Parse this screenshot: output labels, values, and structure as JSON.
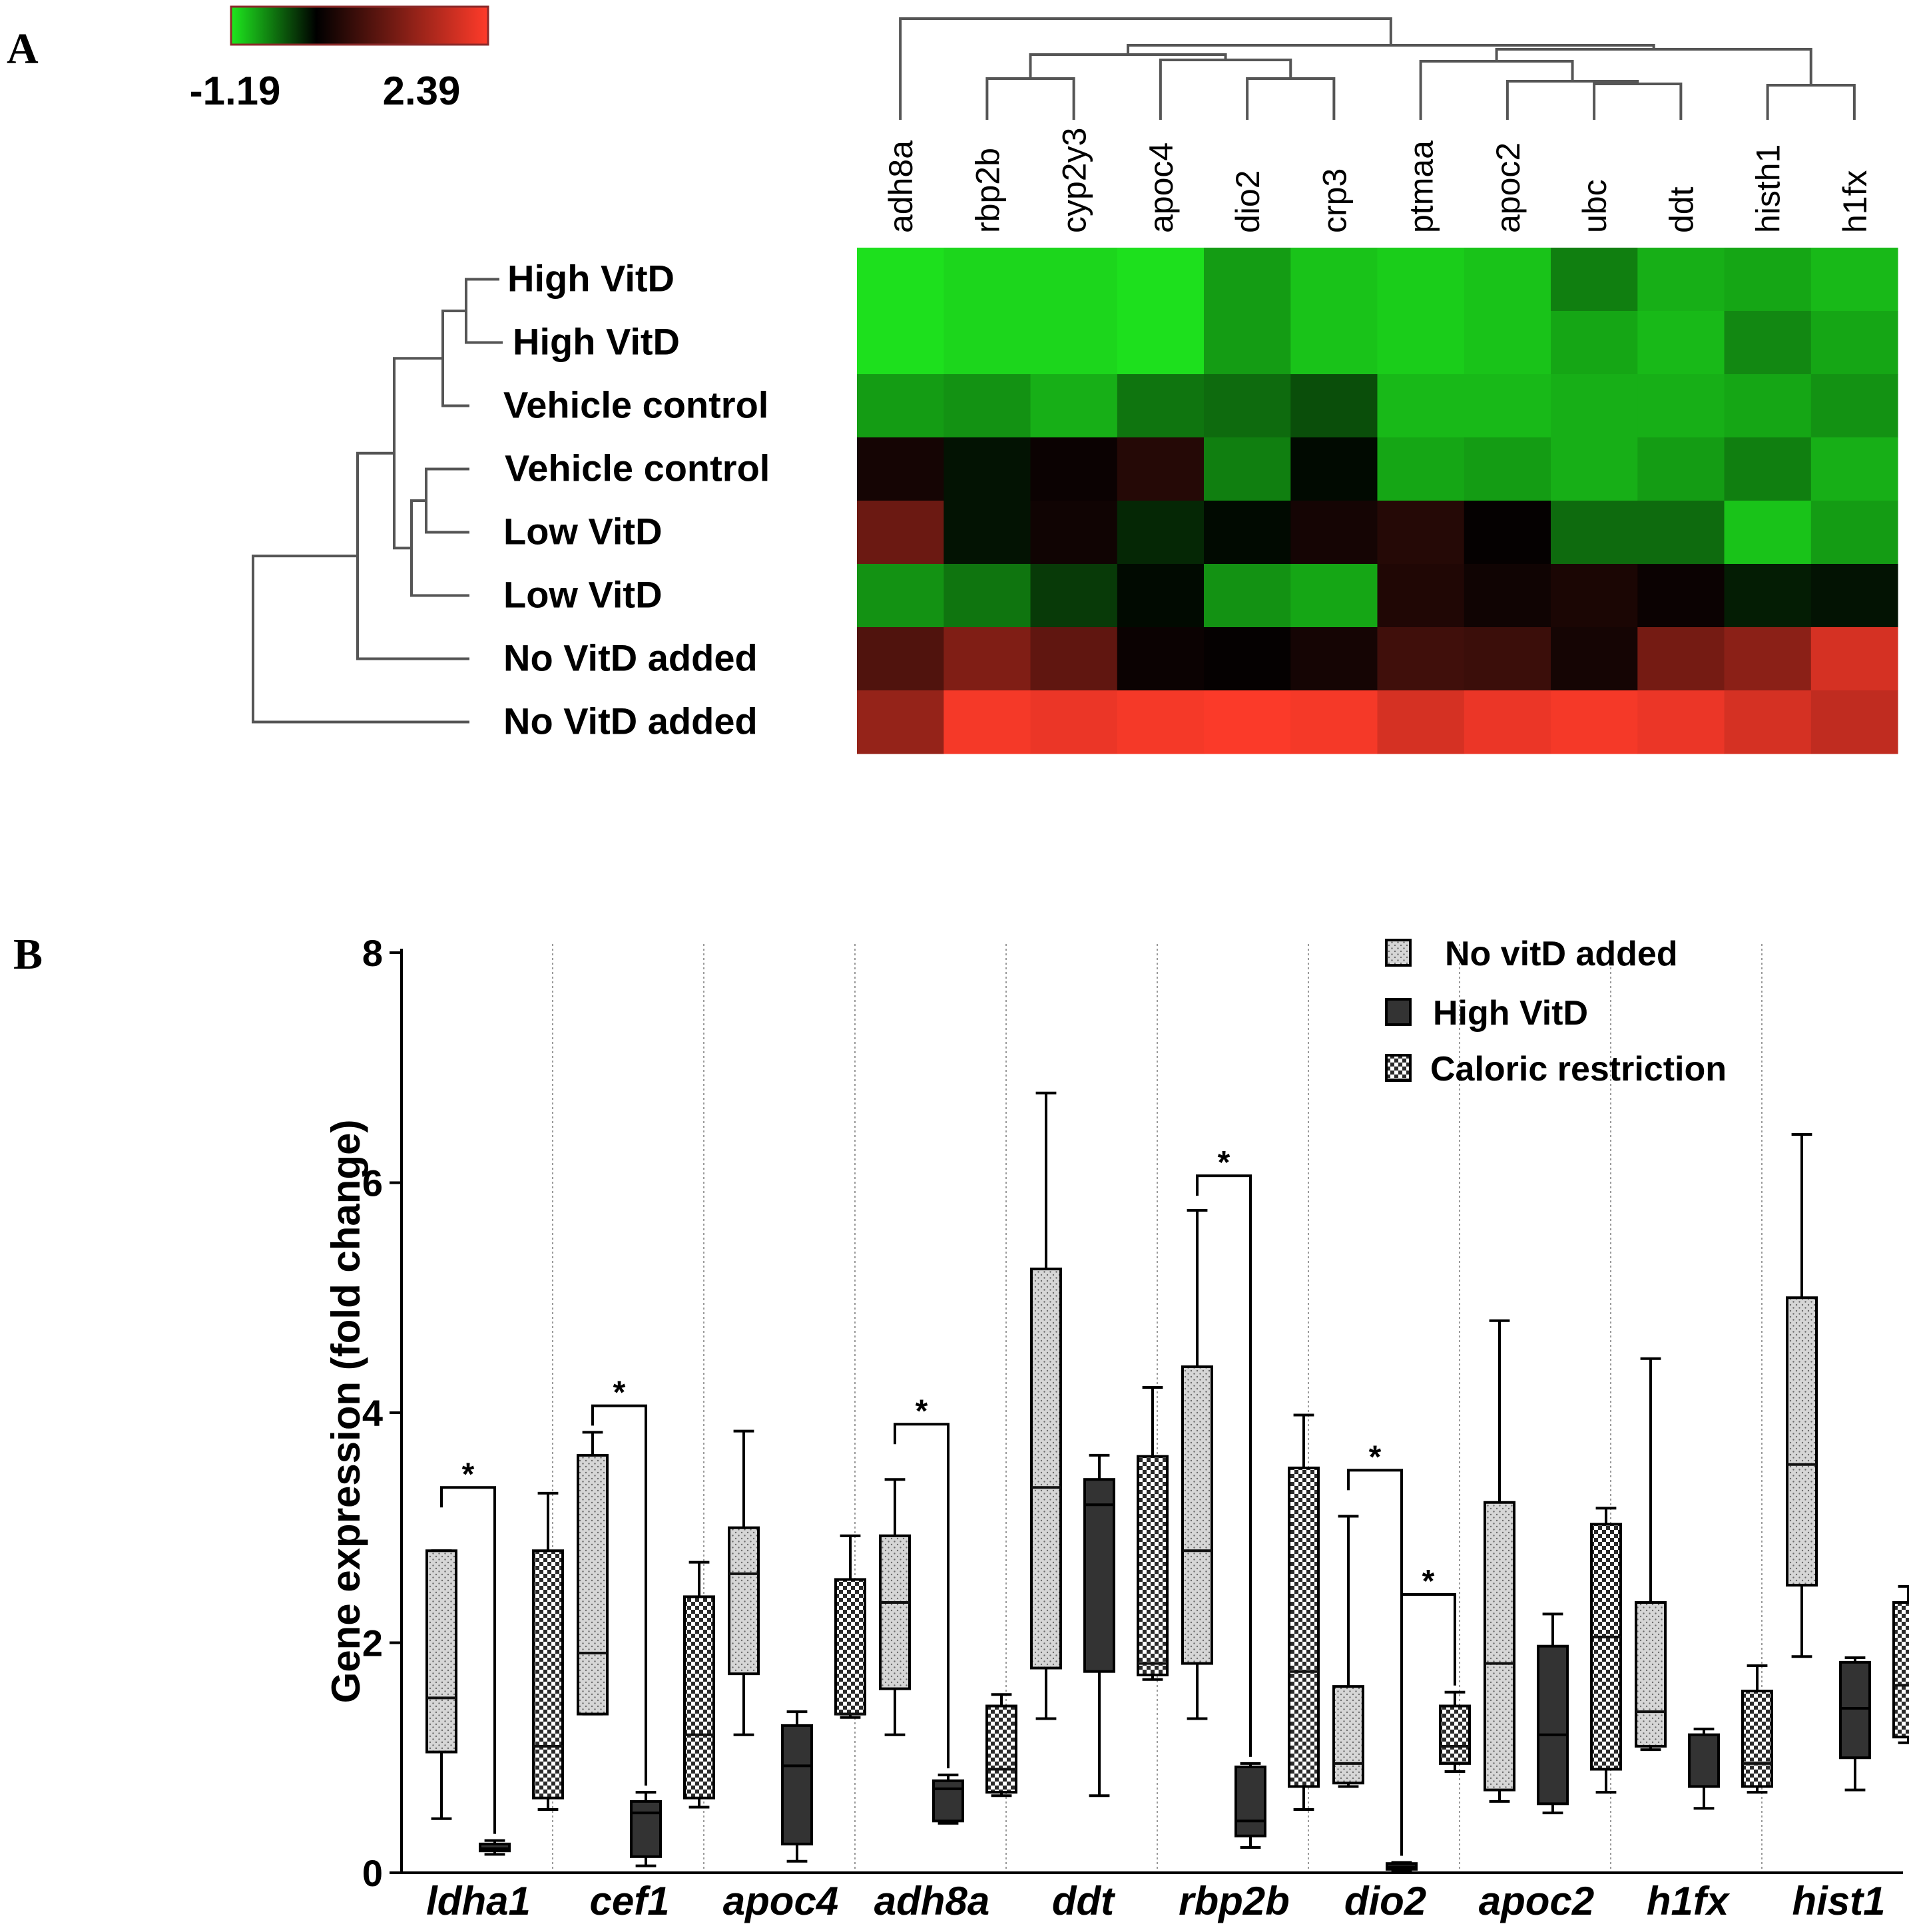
{
  "panel_a": {
    "label": "A",
    "colorbar": {
      "min_label": "-1.19",
      "max_label": "2.39",
      "min": -1.19,
      "max": 2.39,
      "colors": {
        "low": "#1ee81e",
        "mid": "#000000",
        "high": "#ff3b2a"
      }
    }
  },
  "panel_b": {
    "label": "B"
  },
  "chart_data": [
    {
      "type": "heatmap",
      "title": "",
      "columns": [
        "adh8a",
        "rbp2b",
        "cyp2y3",
        "apoc4",
        "dio2",
        "crp3",
        "ptmaa",
        "apoc2",
        "ubc",
        "ddt",
        "histh1",
        "h1fx"
      ],
      "rows": [
        "High VitD",
        "High VitD",
        "Vehicle control",
        "Vehicle control",
        "Low VitD",
        "Low VitD",
        "No VitD added",
        "No VitD added"
      ],
      "value_range": [
        -1.19,
        2.39
      ],
      "values": [
        [
          -1.15,
          -1.1,
          -1.1,
          -1.15,
          -0.8,
          -1.0,
          -1.05,
          -1.0,
          -0.65,
          -0.9,
          -0.85,
          -0.95
        ],
        [
          -1.15,
          -1.1,
          -1.1,
          -1.15,
          -0.8,
          -1.0,
          -1.05,
          -1.0,
          -0.85,
          -0.95,
          -0.7,
          -0.85
        ],
        [
          -0.8,
          -0.75,
          -0.9,
          -0.6,
          -0.55,
          -0.4,
          -0.95,
          -0.95,
          -0.9,
          -0.9,
          -0.85,
          -0.75
        ],
        [
          0.2,
          -0.1,
          0.1,
          0.35,
          -0.65,
          -0.05,
          -0.85,
          -0.8,
          -0.9,
          -0.8,
          -0.65,
          -0.9
        ],
        [
          1.0,
          -0.1,
          0.15,
          -0.2,
          -0.05,
          0.2,
          0.35,
          0.05,
          -0.55,
          -0.55,
          -1.0,
          -0.8
        ],
        [
          -0.75,
          -0.6,
          -0.3,
          -0.05,
          -0.75,
          -0.85,
          0.3,
          0.15,
          0.25,
          0.1,
          -0.15,
          -0.1
        ],
        [
          0.75,
          1.2,
          0.9,
          0.1,
          0.05,
          0.2,
          0.6,
          0.55,
          0.2,
          1.1,
          1.3,
          2.0
        ],
        [
          1.4,
          2.3,
          2.2,
          2.3,
          2.35,
          2.3,
          2.0,
          2.2,
          2.3,
          2.2,
          2.0,
          1.8
        ]
      ],
      "dendrogram": "rows and columns hierarchically clustered"
    },
    {
      "type": "box",
      "title": "",
      "xlabel": "",
      "ylabel": "Gene expression (fold change)",
      "ylim": [
        0,
        8
      ],
      "yticks": [
        0,
        2,
        4,
        6,
        8
      ],
      "categories": [
        "ldha1",
        "cef1",
        "apoc4",
        "adh8a",
        "ddt",
        "rbp2b",
        "dio2",
        "apoc2",
        "h1fx",
        "hist1"
      ],
      "series": [
        {
          "name": "No vitD added",
          "pattern": "dots",
          "boxes": [
            {
              "min": 0.47,
              "q1": 1.05,
              "median": 1.52,
              "q3": 2.8,
              "max": 2.8
            },
            {
              "min": 1.38,
              "q1": 1.38,
              "median": 1.91,
              "q3": 3.63,
              "max": 3.83
            },
            {
              "min": 1.2,
              "q1": 1.73,
              "median": 2.6,
              "q3": 3.0,
              "max": 3.84
            },
            {
              "min": 1.2,
              "q1": 1.6,
              "median": 2.35,
              "q3": 2.93,
              "max": 3.42
            },
            {
              "min": 1.34,
              "q1": 1.78,
              "median": 3.35,
              "q3": 5.25,
              "max": 6.78
            },
            {
              "min": 1.34,
              "q1": 1.82,
              "median": 2.8,
              "q3": 4.4,
              "max": 5.76
            },
            {
              "min": 0.75,
              "q1": 0.78,
              "median": 0.95,
              "q3": 1.62,
              "max": 3.1
            },
            {
              "min": 0.62,
              "q1": 0.72,
              "median": 1.82,
              "q3": 3.22,
              "max": 4.8
            },
            {
              "min": 1.07,
              "q1": 1.1,
              "median": 1.4,
              "q3": 2.35,
              "max": 4.47
            },
            {
              "min": 1.88,
              "q1": 2.5,
              "median": 3.55,
              "q3": 5.0,
              "max": 6.42
            }
          ]
        },
        {
          "name": "High VitD",
          "pattern": "solid",
          "boxes": [
            {
              "min": 0.16,
              "q1": 0.19,
              "median": 0.21,
              "q3": 0.25,
              "max": 0.28
            },
            {
              "min": 0.06,
              "q1": 0.14,
              "median": 0.52,
              "q3": 0.62,
              "max": 0.7
            },
            {
              "min": 0.1,
              "q1": 0.25,
              "median": 0.93,
              "q3": 1.28,
              "max": 1.4
            },
            {
              "min": 0.43,
              "q1": 0.45,
              "median": 0.73,
              "q3": 0.8,
              "max": 0.85
            },
            {
              "min": 0.67,
              "q1": 1.75,
              "median": 3.2,
              "q3": 3.42,
              "max": 3.63
            },
            {
              "min": 0.22,
              "q1": 0.32,
              "median": 0.45,
              "q3": 0.92,
              "max": 0.95
            },
            {
              "min": 0.02,
              "q1": 0.03,
              "median": 0.05,
              "q3": 0.08,
              "max": 0.09
            },
            {
              "min": 0.52,
              "q1": 0.6,
              "median": 1.2,
              "q3": 1.97,
              "max": 2.25
            },
            {
              "min": 0.56,
              "q1": 0.75,
              "median": 0.75,
              "q3": 1.2,
              "max": 1.25
            },
            {
              "min": 0.72,
              "q1": 1.0,
              "median": 1.43,
              "q3": 1.83,
              "max": 1.87
            }
          ]
        },
        {
          "name": "Caloric restriction",
          "pattern": "checker",
          "boxes": [
            {
              "min": 0.55,
              "q1": 0.65,
              "median": 1.1,
              "q3": 2.8,
              "max": 3.3
            },
            {
              "min": 0.57,
              "q1": 0.65,
              "median": 1.2,
              "q3": 2.4,
              "max": 2.7
            },
            {
              "min": 1.35,
              "q1": 1.38,
              "median": 1.38,
              "q3": 2.55,
              "max": 2.93
            },
            {
              "min": 0.67,
              "q1": 0.7,
              "median": 0.9,
              "q3": 1.45,
              "max": 1.55
            },
            {
              "min": 1.68,
              "q1": 1.72,
              "median": 1.82,
              "q3": 3.62,
              "max": 4.22
            },
            {
              "min": 0.55,
              "q1": 0.75,
              "median": 1.75,
              "q3": 3.52,
              "max": 3.98
            },
            {
              "min": 0.88,
              "q1": 0.95,
              "median": 1.1,
              "q3": 1.45,
              "max": 1.57
            },
            {
              "min": 0.7,
              "q1": 0.9,
              "median": 2.05,
              "q3": 3.03,
              "max": 3.17
            },
            {
              "min": 0.7,
              "q1": 0.75,
              "median": 0.95,
              "q3": 1.58,
              "max": 1.8
            },
            {
              "min": 1.13,
              "q1": 1.18,
              "median": 1.63,
              "q3": 2.35,
              "max": 2.49
            }
          ]
        }
      ],
      "significance": [
        {
          "category": "ldha1",
          "from": "No vitD added",
          "to": "High VitD",
          "y": 3.35,
          "label": "*"
        },
        {
          "category": "cef1",
          "from": "No vitD added",
          "to": "High VitD",
          "y": 4.06,
          "label": "*"
        },
        {
          "category": "adh8a",
          "from": "No vitD added",
          "to": "High VitD",
          "y": 3.9,
          "label": "*"
        },
        {
          "category": "rbp2b",
          "from": "No vitD added",
          "to": "High VitD",
          "y": 6.06,
          "label": "*"
        },
        {
          "category": "dio2",
          "from": "No vitD added",
          "to": "High VitD",
          "y": 3.5,
          "label": "*"
        },
        {
          "category": "dio2",
          "from": "High VitD",
          "to": "Caloric restriction",
          "y": 2.42,
          "label": "*"
        }
      ],
      "legend_position": "top-right"
    }
  ]
}
